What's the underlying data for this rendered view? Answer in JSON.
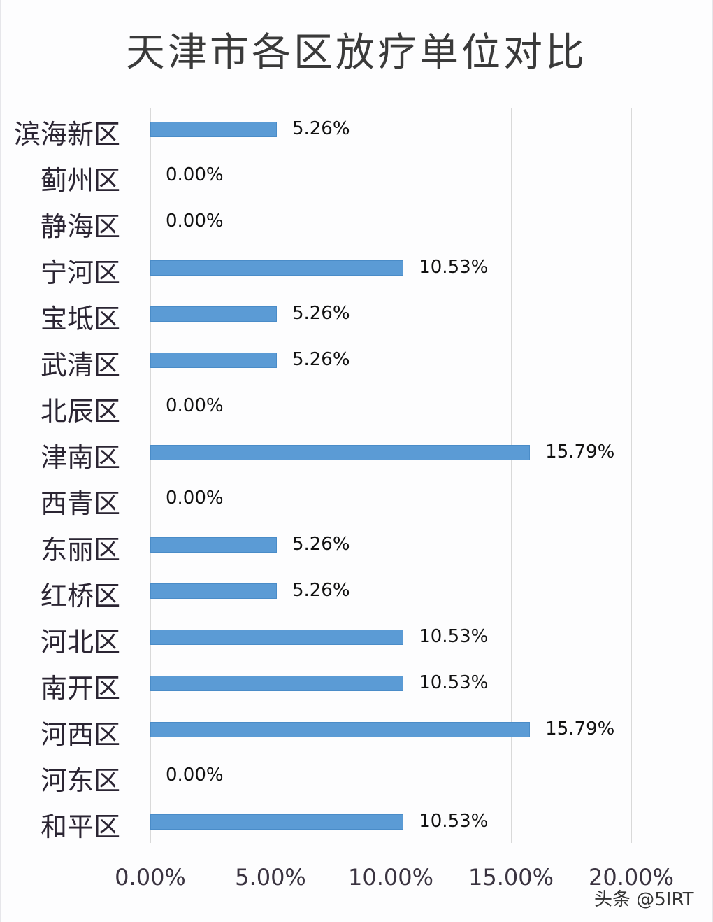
{
  "chart_data": {
    "type": "bar",
    "orientation": "horizontal",
    "title": "天津市各区放疗单位对比",
    "xlabel": "",
    "ylabel": "",
    "xlim": [
      0,
      20
    ],
    "x_ticks": [
      "0.00%",
      "5.00%",
      "10.00%",
      "15.00%",
      "20.00%"
    ],
    "grid": true,
    "legend": null,
    "bar_color": "#5b9bd5",
    "categories": [
      "滨海新区",
      "蓟州区",
      "静海区",
      "宁河区",
      "宝坻区",
      "武清区",
      "北辰区",
      "津南区",
      "西青区",
      "东丽区",
      "红桥区",
      "河北区",
      "南开区",
      "河西区",
      "河东区",
      "和平区"
    ],
    "values": [
      5.26,
      0.0,
      0.0,
      10.53,
      5.26,
      5.26,
      0.0,
      15.79,
      0.0,
      5.26,
      5.26,
      10.53,
      10.53,
      15.79,
      0.0,
      10.53
    ],
    "value_labels": [
      "5.26%",
      "0.00%",
      "0.00%",
      "10.53%",
      "5.26%",
      "5.26%",
      "0.00%",
      "15.79%",
      "0.00%",
      "5.26%",
      "5.26%",
      "10.53%",
      "10.53%",
      "15.79%",
      "0.00%",
      "10.53%"
    ]
  },
  "watermark": "头条 @5IRT"
}
